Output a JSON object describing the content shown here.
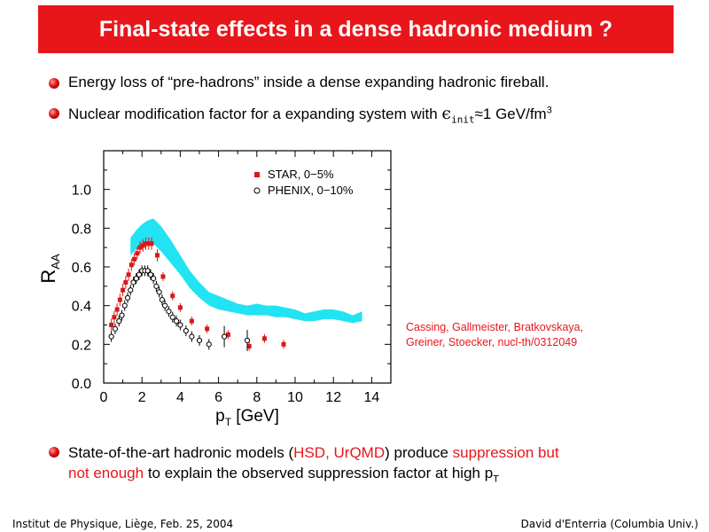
{
  "title": "Final-state effects in a dense hadronic medium ?",
  "bullets": {
    "b1": "Energy loss of “pre-hadrons” inside a dense expanding hadronic fireball.",
    "b2_pre": "Nuclear modification factor for a expanding system with ",
    "b2_eps": "ϵ",
    "b2_sub": "init",
    "b2_post": "≈1 GeV/fm",
    "b2_sup": "3",
    "b3": {
      "t1": "State-of-the-art hadronic models (",
      "r1": "HSD, UrQMD",
      "t2": ") produce ",
      "r2": "suppression but",
      "r3": "not enough",
      "t3": " to explain the observed suppression factor at high p",
      "sub": "T"
    }
  },
  "citation": {
    "line1": "Cassing, Gallmeister, Bratkovskaya,",
    "line2": "Greiner, Stoecker, nucl-th/0312049"
  },
  "footer": {
    "left": "Institut de Physique, Liège, Feb. 25, 2004",
    "right": "David d'Enterria (Columbia Univ.)"
  },
  "chart_data": {
    "type": "scatter",
    "title": "",
    "xlabel": "p",
    "xlabel_sub": "T",
    "xlabel_unit": " [GeV]",
    "ylabel": "R",
    "ylabel_sub": "AA",
    "xlim": [
      0,
      15
    ],
    "ylim": [
      0,
      1.2
    ],
    "x_ticks": [
      "0",
      "2",
      "4",
      "6",
      "8",
      "10",
      "12",
      "14"
    ],
    "y_ticks": [
      "0.0",
      "0.2",
      "0.4",
      "0.6",
      "0.8",
      "1.0"
    ],
    "legend_position": "top-right",
    "colors": {
      "star": "#d81818",
      "band": "#22e3f2",
      "phenix": "#000000"
    },
    "series": [
      {
        "name": "STAR, 0−5%",
        "marker": "filled-square",
        "x": [
          0.4,
          0.55,
          0.7,
          0.85,
          1.0,
          1.15,
          1.3,
          1.45,
          1.6,
          1.75,
          1.9,
          2.05,
          2.2,
          2.35,
          2.5,
          2.8,
          3.1,
          3.6,
          4.0,
          4.6,
          5.4,
          6.5,
          7.6,
          8.4,
          9.4
        ],
        "y": [
          0.3,
          0.34,
          0.38,
          0.43,
          0.48,
          0.52,
          0.56,
          0.61,
          0.64,
          0.67,
          0.7,
          0.71,
          0.72,
          0.72,
          0.72,
          0.66,
          0.55,
          0.45,
          0.39,
          0.32,
          0.28,
          0.25,
          0.19,
          0.23,
          0.2
        ]
      },
      {
        "name": "PHENIX, 0−10%",
        "marker": "open-circle",
        "x": [
          0.4,
          0.6,
          0.8,
          0.95,
          1.1,
          1.25,
          1.4,
          1.55,
          1.7,
          1.85,
          2.0,
          2.15,
          2.3,
          2.45,
          2.6,
          2.75,
          2.9,
          3.05,
          3.2,
          3.4,
          3.6,
          3.8,
          4.0,
          4.3,
          4.6,
          5.0,
          5.5,
          6.3,
          7.5
        ],
        "y": [
          0.24,
          0.28,
          0.32,
          0.35,
          0.4,
          0.44,
          0.48,
          0.52,
          0.54,
          0.56,
          0.58,
          0.58,
          0.58,
          0.56,
          0.54,
          0.5,
          0.47,
          0.43,
          0.4,
          0.37,
          0.34,
          0.32,
          0.3,
          0.27,
          0.24,
          0.22,
          0.2,
          0.24,
          0.22
        ]
      }
    ],
    "bands": [
      {
        "name": "",
        "x": [
          1.4,
          1.7,
          2.0,
          2.3,
          2.6,
          3.0,
          3.5,
          4.0,
          4.5,
          5.0,
          5.5,
          6.0,
          6.5,
          7.0,
          7.5,
          8.0,
          8.5,
          9.0,
          9.5,
          10.0,
          10.5,
          11.0,
          11.5,
          12.0,
          12.5,
          13.0,
          13.5
        ],
        "upper": [
          0.75,
          0.79,
          0.82,
          0.84,
          0.85,
          0.81,
          0.74,
          0.66,
          0.58,
          0.52,
          0.47,
          0.45,
          0.43,
          0.41,
          0.4,
          0.41,
          0.4,
          0.4,
          0.39,
          0.38,
          0.36,
          0.37,
          0.38,
          0.38,
          0.37,
          0.35,
          0.37
        ],
        "lower": [
          0.66,
          0.69,
          0.71,
          0.72,
          0.72,
          0.68,
          0.62,
          0.56,
          0.49,
          0.44,
          0.4,
          0.38,
          0.37,
          0.36,
          0.35,
          0.35,
          0.35,
          0.34,
          0.34,
          0.33,
          0.32,
          0.32,
          0.33,
          0.33,
          0.32,
          0.31,
          0.32
        ]
      }
    ]
  }
}
